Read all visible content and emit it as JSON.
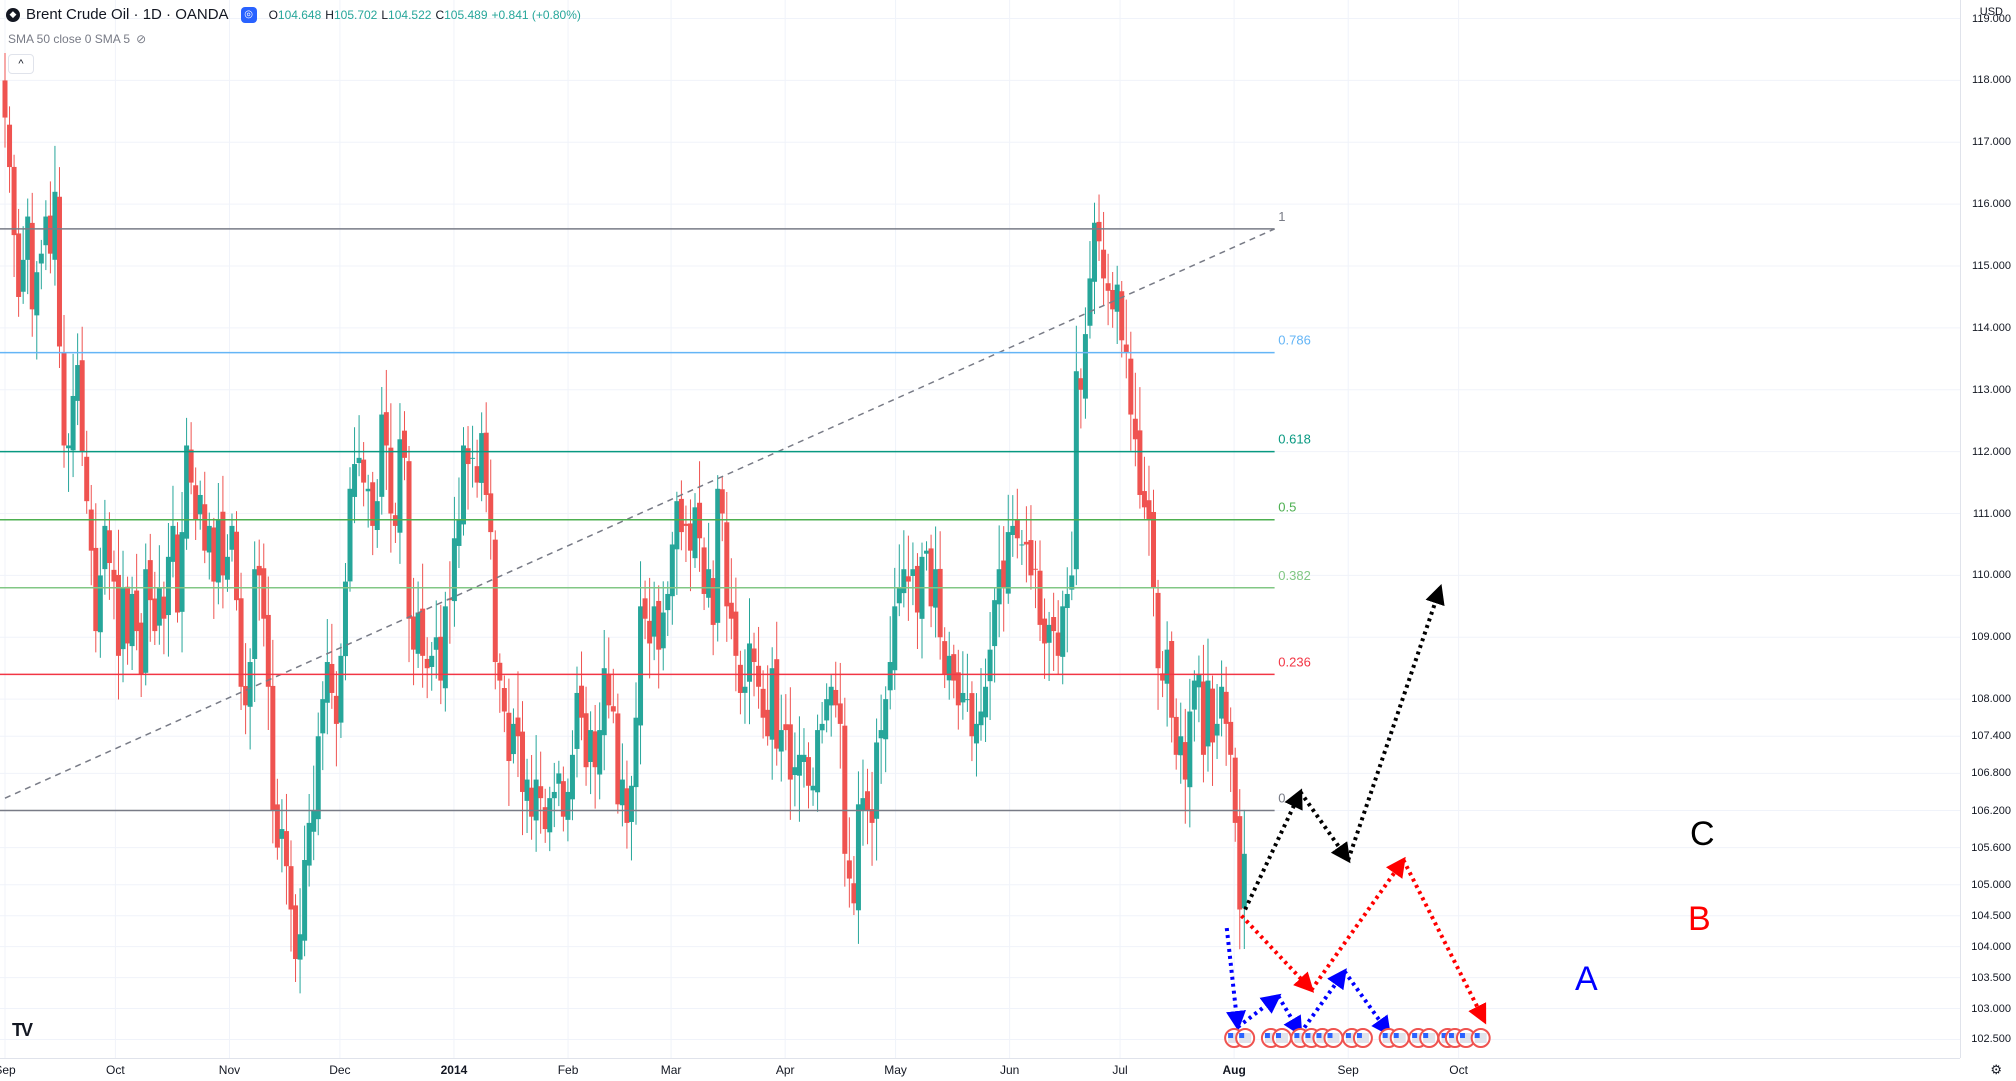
{
  "header": {
    "title": "Brent Crude Oil · 1D · OANDA",
    "ohlc": [
      {
        "label": "O",
        "value": "104.648"
      },
      {
        "label": "H",
        "value": "105.702"
      },
      {
        "label": "L",
        "value": "104.522"
      },
      {
        "label": "C",
        "value": "105.489"
      },
      {
        "label": "",
        "value": "+0.841 (+0.80%)"
      }
    ],
    "indicator": "SMA 50 close 0 SMA 5",
    "currency": "USD"
  },
  "colors": {
    "up": "#26a69a",
    "down": "#ef5350",
    "fib_1": "#787b86",
    "fib_786": "#64b5f6",
    "fib_618": "#089981",
    "fib_5": "#4caf50",
    "fib_382": "#81c784",
    "fib_236": "#f23645",
    "fib_0": "#787b86",
    "arrow_a": "#0000ff",
    "arrow_b": "#ff0000",
    "arrow_c": "#000000"
  },
  "chart_data": {
    "type": "candlestick",
    "symbol": "Brent Crude Oil",
    "interval": "1D",
    "source": "OANDA",
    "ylim": [
      102.2,
      119.3
    ],
    "price_ticks": [
      "119.000",
      "118.000",
      "117.000",
      "116.000",
      "115.000",
      "114.000",
      "113.000",
      "112.000",
      "111.000",
      "110.000",
      "109.000",
      "108.000",
      "107.400",
      "106.800",
      "106.200",
      "105.600",
      "105.000",
      "104.500",
      "104.000",
      "103.500",
      "103.000",
      "102.500"
    ],
    "time_ticks": [
      {
        "label": "Sep",
        "day": 0,
        "bold": false
      },
      {
        "label": "Oct",
        "day": 30,
        "bold": false
      },
      {
        "label": "Nov",
        "day": 61,
        "bold": false
      },
      {
        "label": "Dec",
        "day": 91,
        "bold": false
      },
      {
        "label": "2014",
        "day": 122,
        "bold": true
      },
      {
        "label": "Feb",
        "day": 153,
        "bold": false
      },
      {
        "label": "Mar",
        "day": 181,
        "bold": false
      },
      {
        "label": "Apr",
        "day": 212,
        "bold": false
      },
      {
        "label": "May",
        "day": 242,
        "bold": false
      },
      {
        "label": "Jun",
        "day": 273,
        "bold": false
      },
      {
        "label": "Jul",
        "day": 303,
        "bold": false
      },
      {
        "label": "Aug",
        "day": 334,
        "bold": true
      },
      {
        "label": "Sep",
        "day": 365,
        "bold": false
      },
      {
        "label": "Oct",
        "day": 395,
        "bold": false
      }
    ],
    "fib_levels": [
      {
        "label": "1",
        "price": 115.6
      },
      {
        "label": "0.786",
        "price": 113.6
      },
      {
        "label": "0.618",
        "price": 112.0
      },
      {
        "label": "0.5",
        "price": 110.9
      },
      {
        "label": "0.382",
        "price": 109.8
      },
      {
        "label": "0.236",
        "price": 108.4
      },
      {
        "label": "0",
        "price": 106.2
      }
    ],
    "trendline": {
      "from": {
        "day": 0,
        "price": 106.4
      },
      "to": {
        "day": 345,
        "price": 115.6
      }
    },
    "scenarios": [
      {
        "label": "A",
        "points": [
          [
            332,
            104.3
          ],
          [
            335,
            102.7
          ],
          [
            346,
            103.2
          ],
          [
            352,
            102.6
          ],
          [
            364,
            103.6
          ],
          [
            376,
            102.6
          ]
        ]
      },
      {
        "label": "B",
        "points": [
          [
            336,
            104.5
          ],
          [
            355,
            103.3
          ],
          [
            380,
            105.4
          ],
          [
            402,
            102.8
          ]
        ]
      },
      {
        "label": "C",
        "points": [
          [
            337,
            104.6
          ],
          [
            352,
            106.5
          ],
          [
            365,
            105.4
          ],
          [
            390,
            109.8
          ]
        ]
      }
    ],
    "closes": [
      117.4,
      116.6,
      115.5,
      114.5,
      115.1,
      115.8,
      114.3,
      114.9,
      115.2,
      115.8,
      115.2,
      116.2,
      113.7,
      112.1,
      112.1,
      112.9,
      113.4,
      112.0,
      111.2,
      110.4,
      109.1,
      110.0,
      110.8,
      110.2,
      109.9,
      108.7,
      109.8,
      108.9,
      109.7,
      109.1,
      108.4,
      110.1,
      109.6,
      109.1,
      109.8,
      109.3,
      110.3,
      110.8,
      109.4,
      110.7,
      112.1,
      111.5,
      110.9,
      111.3,
      110.4,
      110.8,
      109.9,
      110.9,
      110.0,
      110.3,
      110.8,
      109.6,
      108.2,
      107.9,
      108.6,
      110.1,
      110.0,
      109.3,
      108.2,
      106.2,
      105.6,
      105.9,
      105.3,
      104.6,
      103.8,
      104.2,
      105.4,
      106.0,
      106.2,
      107.4,
      108.0,
      108.6,
      108.1,
      107.6,
      108.7,
      109.9,
      111.4,
      111.8,
      111.9,
      111.5,
      111.4,
      110.8,
      111.2,
      112.6,
      112.1,
      111.0,
      110.8,
      112.2,
      111.9,
      109.3,
      108.8,
      109.4,
      108.7,
      108.5,
      108.7,
      109.0,
      108.3,
      109.5,
      109.6,
      110.6,
      110.9,
      112.1,
      111.8,
      111.9,
      111.5,
      112.3,
      111.3,
      110.7,
      108.6,
      108.3,
      107.8,
      107.0,
      107.6,
      107.4,
      106.5,
      106.7,
      106.1,
      106.7,
      106.4,
      105.9,
      106.4,
      106.5,
      106.8,
      106.1,
      106.5,
      107.1,
      108.1,
      107.7,
      106.9,
      107.5,
      106.9,
      107.5,
      108.5,
      107.9,
      107.8,
      106.3,
      106.7,
      106.0,
      106.6,
      107.7,
      109.5,
      109.3,
      108.9,
      109.5,
      108.8,
      109.4,
      109.7,
      110.5,
      111.2,
      110.7,
      110.8,
      110.4,
      111.1,
      110.6,
      109.7,
      110.1,
      109.2,
      111.4,
      111.0,
      109.5,
      109.3,
      108.7,
      108.1,
      108.2,
      108.9,
      108.6,
      108.2,
      107.7,
      107.4,
      108.5,
      107.2,
      107.5,
      107.5,
      106.7,
      106.9,
      107.1,
      107.1,
      106.6,
      106.6,
      107.5,
      107.6,
      108.0,
      108.2,
      107.9,
      107.6,
      105.5,
      105.1,
      104.7,
      106.3,
      106.4,
      106.2,
      106.0,
      107.3,
      107.5,
      108.0,
      108.6,
      109.5,
      109.8,
      110.1,
      109.9,
      110.1,
      109.4,
      110.3,
      110.4,
      109.5,
      110.1,
      109.0,
      108.4,
      108.7,
      108.3,
      107.9,
      108.1,
      108.0,
      107.4,
      107.6,
      107.8,
      108.2,
      108.8,
      109.6,
      110.1,
      109.8,
      110.7,
      110.8,
      110.6,
      110.5,
      110.5,
      110.0,
      110.1,
      109.2,
      108.9,
      109.2,
      109.1,
      108.7,
      109.5,
      109.7,
      110.0,
      113.3,
      113.0,
      113.9,
      114.8,
      115.7,
      115.4,
      114.8,
      114.6,
      114.3,
      114.7,
      113.8,
      113.6,
      112.6,
      112.2,
      111.3,
      111.1,
      110.9,
      109.8,
      108.5,
      108.3,
      108.8,
      107.7,
      107.1,
      107.4,
      106.7,
      107.8,
      108.3,
      108.4,
      107.1,
      108.3,
      107.3,
      107.6,
      108.2,
      107.6,
      107.1,
      106.0,
      104.6,
      105.5
    ],
    "marker_count": 18
  }
}
